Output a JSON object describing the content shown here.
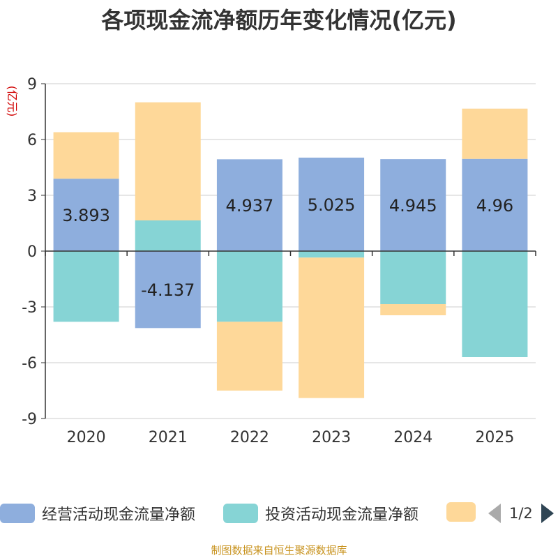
{
  "chart_data": {
    "type": "bar",
    "stacked": true,
    "title": "各项现金流净额历年变化情况(亿元)",
    "ylabel": "(亿元)",
    "ylim": [
      -9,
      9
    ],
    "yticks": [
      9,
      6,
      3,
      0,
      -3,
      -6,
      -9
    ],
    "categories": [
      "2020",
      "2021",
      "2022",
      "2023",
      "2024",
      "2025"
    ],
    "series": [
      {
        "name": "经营活动现金流量净额",
        "color": "#8eaedd",
        "values": [
          3.893,
          -4.137,
          4.937,
          5.025,
          4.945,
          4.96
        ],
        "labels": [
          "3.893",
          "-4.137",
          "4.937",
          "5.025",
          "4.945",
          "4.96"
        ]
      },
      {
        "name": "投资活动现金流量净额",
        "color": "#86d4d5",
        "values": [
          -3.8,
          1.65,
          -3.8,
          -0.35,
          -2.85,
          -5.7
        ]
      },
      {
        "name": "",
        "color": "#fed899",
        "values": [
          2.5,
          6.35,
          -3.7,
          -7.55,
          -0.6,
          2.7
        ]
      }
    ]
  },
  "legend": {
    "items": [
      "经营活动现金流量净额",
      "投资活动现金流量净额",
      ""
    ],
    "page_indicator": "1/2"
  },
  "source": "制图数据来自恒生聚源数据库"
}
